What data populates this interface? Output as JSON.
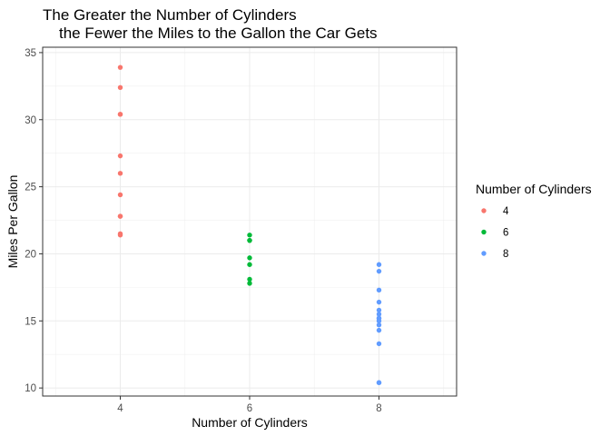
{
  "chart_data": {
    "type": "scatter",
    "title_lines": [
      "The Greater the Number of Cylinders",
      "the Fewer the Miles to the Gallon the Car Gets"
    ],
    "xlabel": "Number of Cylinders",
    "ylabel": "Miles Per Gallon",
    "x_ticks": [
      4,
      6,
      8
    ],
    "y_ticks": [
      10,
      15,
      20,
      25,
      30,
      35
    ],
    "xlim": [
      2.8,
      9.2
    ],
    "ylim": [
      9.4,
      35.4
    ],
    "grid": true,
    "legend": {
      "title": "Number of Cylinders",
      "placement": "right"
    },
    "series": [
      {
        "name": "4",
        "color": "#F8766D",
        "points": [
          {
            "x": 4,
            "y": 33.9
          },
          {
            "x": 4,
            "y": 32.4
          },
          {
            "x": 4,
            "y": 30.4
          },
          {
            "x": 4,
            "y": 30.4
          },
          {
            "x": 4,
            "y": 27.3
          },
          {
            "x": 4,
            "y": 26.0
          },
          {
            "x": 4,
            "y": 24.4
          },
          {
            "x": 4,
            "y": 22.8
          },
          {
            "x": 4,
            "y": 22.8
          },
          {
            "x": 4,
            "y": 21.5
          },
          {
            "x": 4,
            "y": 21.4
          }
        ]
      },
      {
        "name": "6",
        "color": "#00BA38",
        "points": [
          {
            "x": 6,
            "y": 21.4
          },
          {
            "x": 6,
            "y": 21.0
          },
          {
            "x": 6,
            "y": 21.0
          },
          {
            "x": 6,
            "y": 19.7
          },
          {
            "x": 6,
            "y": 19.2
          },
          {
            "x": 6,
            "y": 18.1
          },
          {
            "x": 6,
            "y": 17.8
          }
        ]
      },
      {
        "name": "8",
        "color": "#619CFF",
        "points": [
          {
            "x": 8,
            "y": 19.2
          },
          {
            "x": 8,
            "y": 18.7
          },
          {
            "x": 8,
            "y": 17.3
          },
          {
            "x": 8,
            "y": 16.4
          },
          {
            "x": 8,
            "y": 15.8
          },
          {
            "x": 8,
            "y": 15.5
          },
          {
            "x": 8,
            "y": 15.2
          },
          {
            "x": 8,
            "y": 15.2
          },
          {
            "x": 8,
            "y": 15.0
          },
          {
            "x": 8,
            "y": 14.7
          },
          {
            "x": 8,
            "y": 14.3
          },
          {
            "x": 8,
            "y": 13.3
          },
          {
            "x": 8,
            "y": 10.4
          },
          {
            "x": 8,
            "y": 10.4
          }
        ]
      }
    ]
  }
}
